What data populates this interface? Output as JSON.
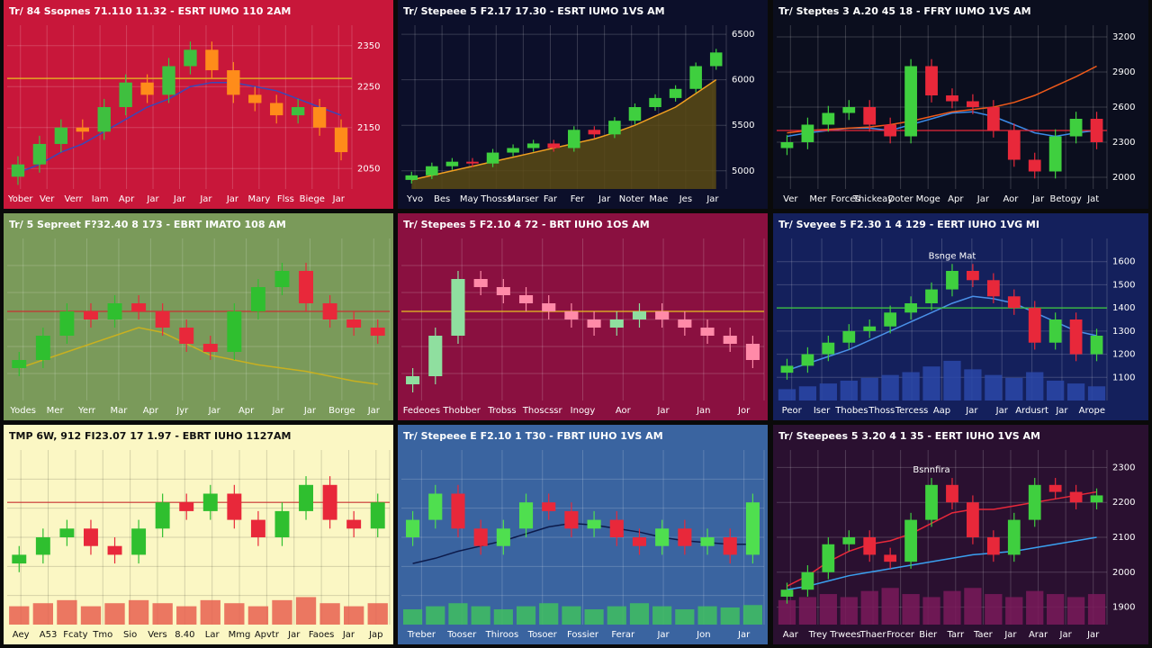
{
  "chart_data": [
    {
      "type": "candlestick",
      "title": "Tr/ 84 Ssopnes 71.110 11.32 - ESRT IUMO 110 2AM",
      "background": "#c8173a",
      "text_color": "#ffffff",
      "grid": true,
      "x_labels": [
        "Yober",
        "Ver",
        "Verr",
        "Iam",
        "Apr",
        "Jar",
        "Jar",
        "Jar",
        "Jar",
        "Mary",
        "Flss",
        "Biege",
        "Jar"
      ],
      "ylim": [
        2000,
        2400
      ],
      "yticks": [
        2050,
        2150,
        2250,
        2350
      ],
      "up_color": "#3fbf3f",
      "down_color": "#ff8c1a",
      "open": [
        2030,
        2060,
        2110,
        2150,
        2140,
        2200,
        2260,
        2230,
        2300,
        2340,
        2290,
        2230,
        2210,
        2180,
        2200,
        2150
      ],
      "high": [
        2080,
        2130,
        2170,
        2170,
        2220,
        2280,
        2280,
        2320,
        2360,
        2360,
        2310,
        2250,
        2230,
        2220,
        2220,
        2170
      ],
      "low": [
        2010,
        2040,
        2090,
        2120,
        2120,
        2180,
        2210,
        2210,
        2280,
        2270,
        2210,
        2190,
        2160,
        2160,
        2130,
        2070
      ],
      "close": [
        2060,
        2110,
        2150,
        2140,
        2200,
        2260,
        2230,
        2300,
        2340,
        2290,
        2230,
        2210,
        2180,
        2200,
        2150,
        2090
      ],
      "lines": [
        {
          "color": "#3a48b8",
          "values": [
            2040,
            2060,
            2090,
            2110,
            2140,
            2170,
            2200,
            2220,
            2250,
            2260,
            2260,
            2250,
            2240,
            2220,
            2200,
            2180
          ]
        }
      ],
      "hline": {
        "value": 2270,
        "color": "#e8c020"
      }
    },
    {
      "type": "candlestick",
      "title": "Tr/ Stepeee 5 F2.17 17.30 - ESRT IUMO 1VS AM",
      "background": "#0c0f2a",
      "text_color": "#ffffff",
      "grid": true,
      "x_labels": [
        "Yvo",
        "Bes",
        "May",
        "Thosss",
        "Marser",
        "Far",
        "Fer",
        "Jar",
        "Noter",
        "Mae",
        "Jes",
        "Jar"
      ],
      "ylim": [
        4800,
        6600
      ],
      "yticks": [
        5000,
        5500,
        6000,
        6500
      ],
      "up_color": "#3fcf3f",
      "down_color": "#e8283a",
      "open": [
        4900,
        4950,
        5050,
        5100,
        5080,
        5200,
        5250,
        5300,
        5250,
        5450,
        5400,
        5550,
        5700,
        5800,
        5900,
        6150
      ],
      "high": [
        4990,
        5090,
        5140,
        5140,
        5240,
        5290,
        5340,
        5340,
        5490,
        5490,
        5590,
        5740,
        5840,
        5940,
        6190,
        6340
      ],
      "low": [
        4860,
        4910,
        5010,
        5040,
        5040,
        5160,
        5210,
        5210,
        5210,
        5360,
        5360,
        5510,
        5660,
        5760,
        5860,
        6110
      ],
      "close": [
        4950,
        5050,
        5100,
        5080,
        5200,
        5250,
        5300,
        5250,
        5450,
        5400,
        5550,
        5700,
        5800,
        5900,
        6150,
        6300
      ],
      "lines": [
        {
          "color": "#f0a020",
          "values": [
            4900,
            4950,
            5000,
            5050,
            5100,
            5150,
            5200,
            5250,
            5300,
            5350,
            5420,
            5500,
            5600,
            5700,
            5850,
            6000
          ],
          "area": "#5a4a14"
        }
      ]
    },
    {
      "type": "candlestick",
      "title": "Tr/ Steptes 3 A.20 45 18 - FFRY IUMO 1VS AM",
      "background": "#0b0e1e",
      "text_color": "#ffffff",
      "grid": true,
      "x_labels": [
        "Ver",
        "Mer",
        "Forces",
        "Thickeay",
        "Doter",
        "Moge",
        "Apr",
        "Jar",
        "Aor",
        "Jar",
        "Betogy",
        "Jat"
      ],
      "ylim": [
        1900,
        3300
      ],
      "yticks": [
        2000,
        2300,
        2600,
        2900,
        3200
      ],
      "up_color": "#3fcf3f",
      "down_color": "#e8283a",
      "open": [
        2250,
        2300,
        2450,
        2550,
        2600,
        2450,
        2350,
        2950,
        2700,
        2650,
        2600,
        2400,
        2150,
        2050,
        2350,
        2500
      ],
      "high": [
        2360,
        2510,
        2610,
        2660,
        2660,
        2510,
        3010,
        3010,
        2760,
        2710,
        2660,
        2460,
        2210,
        2410,
        2560,
        2560
      ],
      "low": [
        2190,
        2240,
        2390,
        2490,
        2390,
        2290,
        2290,
        2640,
        2590,
        2540,
        2340,
        2090,
        1990,
        1990,
        2290,
        2240
      ],
      "close": [
        2300,
        2450,
        2550,
        2600,
        2450,
        2350,
        2950,
        2700,
        2650,
        2600,
        2400,
        2150,
        2050,
        2350,
        2500,
        2300
      ],
      "lines": [
        {
          "color": "#3a8ae8",
          "values": [
            2350,
            2380,
            2400,
            2420,
            2420,
            2400,
            2450,
            2500,
            2550,
            2560,
            2520,
            2450,
            2380,
            2350,
            2380,
            2400
          ]
        },
        {
          "color": "#f05a1a",
          "values": [
            2380,
            2400,
            2410,
            2420,
            2430,
            2450,
            2480,
            2520,
            2560,
            2580,
            2600,
            2640,
            2700,
            2780,
            2860,
            2950
          ]
        }
      ],
      "hline": {
        "value": 2400,
        "color": "#e8283a"
      }
    },
    {
      "type": "candlestick",
      "title": "Tr/ 5 Sepreet F?32.40 8 173 - EBRT IMATO 108 AM",
      "background": "#7a9a5a",
      "text_color": "#ffffff",
      "grid": true,
      "x_labels": [
        "Yodes",
        "Mer",
        "Yerr",
        "Mar",
        "Apr",
        "Jyr",
        "Jar",
        "Apr",
        "Jar",
        "Jar",
        "Borge",
        "Jar"
      ],
      "ylim": [
        0,
        100
      ],
      "up_color": "#2fbf2f",
      "down_color": "#e8283a",
      "open": [
        20,
        25,
        40,
        55,
        50,
        60,
        55,
        45,
        35,
        30,
        55,
        70,
        80,
        60,
        50,
        45
      ],
      "high": [
        30,
        45,
        60,
        60,
        65,
        65,
        60,
        50,
        40,
        60,
        75,
        85,
        85,
        65,
        55,
        50
      ],
      "low": [
        15,
        20,
        35,
        45,
        45,
        50,
        40,
        30,
        25,
        25,
        50,
        65,
        55,
        45,
        40,
        35
      ],
      "close": [
        25,
        40,
        55,
        50,
        60,
        55,
        45,
        35,
        30,
        55,
        70,
        80,
        60,
        50,
        45,
        40
      ],
      "lines": [
        {
          "color": "#c8b020",
          "values": [
            20,
            25,
            30,
            35,
            40,
            45,
            42,
            35,
            28,
            25,
            22,
            20,
            18,
            15,
            12,
            10
          ]
        }
      ],
      "hline": {
        "value": 55,
        "color": "#c83030"
      }
    },
    {
      "type": "candlestick",
      "title": "Tr/ Stepees 5 F2.10 4 72 - BRT IUHO 1OS AM",
      "background": "#8a1040",
      "text_color": "#ffffff",
      "grid": true,
      "x_labels": [
        "Fedeoes",
        "Thobber",
        "Trobss",
        "Thoscssr",
        "Inogy",
        "Aor",
        "Jar",
        "Jan",
        "Jor"
      ],
      "ylim": [
        0,
        100
      ],
      "up_color": "#8fdf9f",
      "down_color": "#ff8aa8",
      "open": [
        10,
        15,
        40,
        75,
        70,
        65,
        60,
        55,
        50,
        45,
        50,
        55,
        50,
        45,
        40,
        35
      ],
      "high": [
        20,
        45,
        80,
        80,
        75,
        70,
        65,
        60,
        55,
        55,
        60,
        60,
        55,
        50,
        45,
        40
      ],
      "low": [
        5,
        10,
        35,
        65,
        60,
        55,
        50,
        45,
        40,
        40,
        45,
        45,
        40,
        35,
        30,
        20
      ],
      "close": [
        15,
        40,
        75,
        70,
        65,
        60,
        55,
        50,
        45,
        50,
        55,
        50,
        45,
        40,
        35,
        25
      ],
      "lines": [],
      "hline": {
        "value": 55,
        "color": "#e8c020"
      }
    },
    {
      "type": "candlestick",
      "title": "Tr/ Sveyee 5 F2.30 1 4 129 - EERT IUHO 1VG MI",
      "background": "#14205c",
      "text_color": "#ffffff",
      "grid": true,
      "annotation": "Bsnge Mat",
      "x_labels": [
        "Peor",
        "Iser",
        "Thobes",
        "Thoss",
        "Tercess",
        "Aap",
        "Jar",
        "Jar",
        "Ardusrt",
        "Jar",
        "Arope"
      ],
      "ylim": [
        1000,
        1700
      ],
      "yticks": [
        1100,
        1200,
        1300,
        1400,
        1500,
        1600
      ],
      "up_color": "#3fcf3f",
      "down_color": "#e8283a",
      "open": [
        1120,
        1150,
        1200,
        1250,
        1300,
        1320,
        1380,
        1420,
        1480,
        1560,
        1520,
        1450,
        1400,
        1250,
        1350,
        1200
      ],
      "high": [
        1180,
        1230,
        1280,
        1330,
        1350,
        1410,
        1450,
        1510,
        1590,
        1590,
        1550,
        1480,
        1430,
        1380,
        1380,
        1310
      ],
      "low": [
        1090,
        1120,
        1170,
        1220,
        1270,
        1290,
        1350,
        1390,
        1450,
        1490,
        1420,
        1370,
        1220,
        1220,
        1170,
        1170
      ],
      "close": [
        1150,
        1200,
        1250,
        1300,
        1320,
        1380,
        1420,
        1480,
        1560,
        1520,
        1450,
        1400,
        1250,
        1350,
        1200,
        1280
      ],
      "lines": [
        {
          "color": "#4a90e8",
          "values": [
            1130,
            1160,
            1190,
            1220,
            1260,
            1300,
            1340,
            1380,
            1420,
            1450,
            1440,
            1420,
            1380,
            1340,
            1300,
            1280
          ]
        }
      ],
      "hline": {
        "value": 1400,
        "color": "#3fcf3f"
      },
      "volume": {
        "color": "#2a48a8",
        "lim": [
          0,
          100
        ],
        "values": [
          20,
          25,
          30,
          35,
          40,
          45,
          50,
          60,
          70,
          55,
          45,
          40,
          50,
          35,
          30,
          25
        ]
      }
    },
    {
      "type": "candlestick",
      "title": "TMP 6W, 912 FI23.07 17 1.97 - EBRT IUHO 1127AM",
      "background": "#fbf7c4",
      "text_color": "#111111",
      "grid": true,
      "x_labels": [
        "Aey",
        "A53",
        "Fcaty",
        "Tmo",
        "Sio",
        "Vers",
        "8.40",
        "Lar",
        "Mmg",
        "Apvtr",
        "Jar",
        "Faoes",
        "Jar",
        "Jap"
      ],
      "ylim": [
        0,
        100
      ],
      "up_color": "#2fbf2f",
      "down_color": "#e8283a",
      "open": [
        35,
        40,
        50,
        55,
        45,
        40,
        55,
        70,
        65,
        75,
        60,
        50,
        65,
        80,
        60,
        55
      ],
      "high": [
        45,
        55,
        60,
        60,
        50,
        60,
        75,
        75,
        80,
        80,
        65,
        70,
        85,
        85,
        65,
        75
      ],
      "low": [
        30,
        35,
        45,
        40,
        35,
        35,
        50,
        60,
        60,
        55,
        45,
        45,
        60,
        55,
        50,
        50
      ],
      "close": [
        40,
        50,
        55,
        45,
        40,
        55,
        70,
        65,
        75,
        60,
        50,
        65,
        80,
        60,
        55,
        70
      ],
      "lines": [],
      "hline": {
        "value": 70,
        "color": "#c83030"
      },
      "volume": {
        "color": "#e86050",
        "lim": [
          0,
          100
        ],
        "values": [
          30,
          35,
          40,
          30,
          35,
          40,
          35,
          30,
          40,
          35,
          30,
          40,
          45,
          35,
          30,
          35
        ]
      }
    },
    {
      "type": "candlestick",
      "title": "Tr/ Stepeee E F2.10 1 T30 - FBRT IUHO 1VS AM",
      "background": "#3a64a0",
      "text_color": "#ffffff",
      "grid": true,
      "x_labels": [
        "Treber",
        "Tooser",
        "Thiroos",
        "Tosoer",
        "Fossier",
        "Ferar",
        "Jar",
        "Jon",
        "Jar"
      ],
      "ylim": [
        0,
        100
      ],
      "up_color": "#4fdf4f",
      "down_color": "#e8283a",
      "open": [
        50,
        60,
        75,
        55,
        45,
        55,
        70,
        65,
        55,
        60,
        50,
        45,
        55,
        45,
        50,
        40
      ],
      "high": [
        65,
        80,
        80,
        60,
        60,
        75,
        75,
        70,
        65,
        65,
        55,
        60,
        60,
        55,
        55,
        75
      ],
      "low": [
        45,
        55,
        50,
        40,
        40,
        50,
        60,
        50,
        50,
        45,
        40,
        40,
        40,
        40,
        35,
        35
      ],
      "close": [
        60,
        75,
        55,
        45,
        55,
        70,
        65,
        55,
        60,
        50,
        45,
        55,
        45,
        50,
        40,
        70
      ],
      "lines": [
        {
          "color": "#0c1a4a",
          "values": [
            35,
            38,
            42,
            45,
            48,
            52,
            56,
            58,
            57,
            55,
            53,
            50,
            48,
            47,
            46,
            46
          ]
        }
      ],
      "volume": {
        "color": "#3fbf5f",
        "lim": [
          0,
          100
        ],
        "values": [
          25,
          30,
          35,
          30,
          25,
          30,
          35,
          30,
          25,
          30,
          35,
          30,
          25,
          30,
          28,
          32
        ]
      }
    },
    {
      "type": "candlestick",
      "title": "Tr/ Steepees 5 3.20 4 1 35 - EERT IUHO 1VS AM",
      "background": "#2a1030",
      "text_color": "#ffffff",
      "grid": true,
      "annotation": "Bsnnfira",
      "x_labels": [
        "Aar",
        "Trey",
        "Trwees",
        "Thaer",
        "Frocer",
        "Bier",
        "Tarr",
        "Taer",
        "Jar",
        "Arar",
        "Jar",
        "Jar"
      ],
      "ylim": [
        1850,
        2350
      ],
      "yticks": [
        1900,
        2000,
        2100,
        2200,
        2300
      ],
      "up_color": "#3fcf3f",
      "down_color": "#e8283a",
      "open": [
        1930,
        1950,
        2000,
        2080,
        2100,
        2050,
        2030,
        2150,
        2250,
        2200,
        2100,
        2050,
        2150,
        2250,
        2230,
        2200
      ],
      "high": [
        1970,
        2020,
        2100,
        2120,
        2120,
        2070,
        2170,
        2270,
        2270,
        2220,
        2120,
        2170,
        2270,
        2270,
        2250,
        2240
      ],
      "low": [
        1910,
        1930,
        1980,
        2060,
        2030,
        2010,
        2010,
        2130,
        2180,
        2080,
        2030,
        2030,
        2130,
        2210,
        2180,
        2180
      ],
      "close": [
        1950,
        2000,
        2080,
        2100,
        2050,
        2030,
        2150,
        2250,
        2200,
        2100,
        2050,
        2150,
        2250,
        2230,
        2200,
        2220
      ],
      "lines": [
        {
          "color": "#e8283a",
          "values": [
            1960,
            1990,
            2030,
            2060,
            2080,
            2090,
            2110,
            2140,
            2170,
            2180,
            2180,
            2190,
            2200,
            2210,
            2220,
            2230
          ]
        },
        {
          "color": "#3aa0f0",
          "values": [
            1950,
            1960,
            1975,
            1990,
            2000,
            2010,
            2020,
            2030,
            2040,
            2050,
            2055,
            2060,
            2070,
            2080,
            2090,
            2100
          ]
        }
      ],
      "volume": {
        "color": "#7a1a5a",
        "lim": [
          0,
          100
        ],
        "values": [
          40,
          45,
          50,
          45,
          55,
          60,
          50,
          45,
          55,
          60,
          50,
          45,
          55,
          50,
          45,
          50
        ]
      }
    }
  ]
}
